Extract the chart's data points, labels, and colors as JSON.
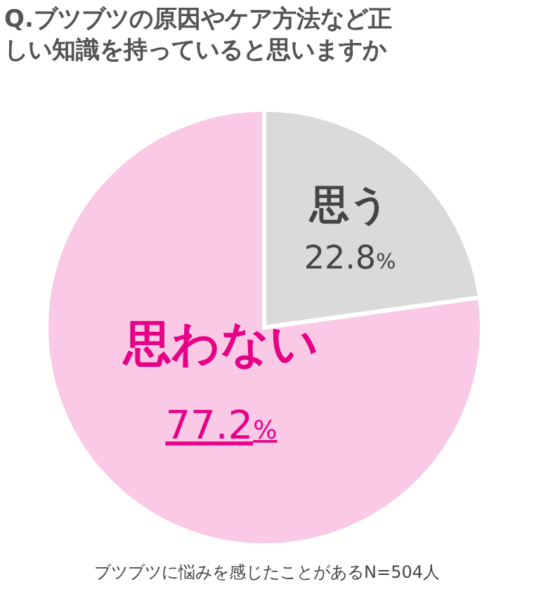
{
  "chart_data": {
    "type": "pie",
    "title": "Q.ブツブツの原因やケア方法など正しい知識を持っていると思いますか",
    "categories": [
      "思う",
      "思わない"
    ],
    "values": [
      22.8,
      77.2
    ],
    "colors": [
      "#dadada",
      "#f9c9e5"
    ],
    "value_labels": [
      "22.8%",
      "77.2%"
    ],
    "annotations": [
      "ブツブツに悩みを感じたことがあるN=504人"
    ]
  }
}
